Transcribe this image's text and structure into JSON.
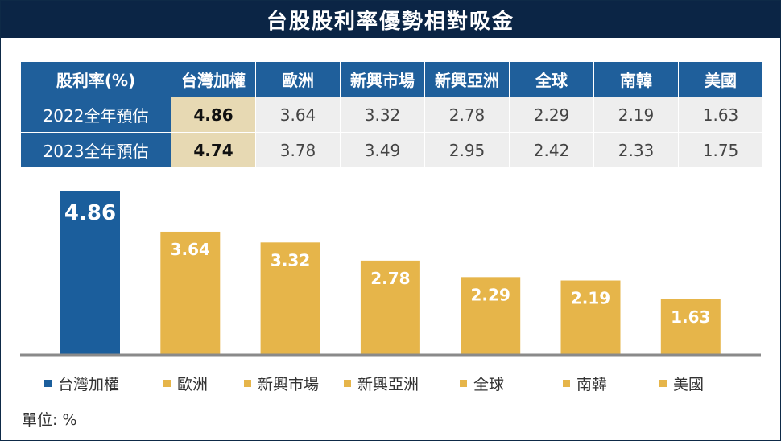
{
  "title": "台股股利率優勢相對吸金",
  "table": {
    "header": [
      "股利率(%)",
      "台灣加權",
      "歐洲",
      "新興市場",
      "新興亞洲",
      "全球",
      "南韓",
      "美國"
    ],
    "rows": [
      {
        "label": "2022全年預估",
        "values": [
          "4.86",
          "3.64",
          "3.32",
          "2.78",
          "2.29",
          "2.19",
          "1.63"
        ]
      },
      {
        "label": "2023全年預估",
        "values": [
          "4.74",
          "3.78",
          "3.49",
          "2.95",
          "2.42",
          "2.33",
          "1.75"
        ]
      }
    ]
  },
  "chart_data": {
    "type": "bar",
    "categories": [
      "台灣加權",
      "歐洲",
      "新興市場",
      "新興亞洲",
      "全球",
      "南韓",
      "美國"
    ],
    "values": [
      4.86,
      3.64,
      3.32,
      2.78,
      2.29,
      2.19,
      1.63
    ],
    "data_labels": [
      "4.86",
      "3.64",
      "3.32",
      "2.78",
      "2.29",
      "2.19",
      "1.63"
    ],
    "colors": [
      "#1b5e9c",
      "#e6b54a",
      "#e6b54a",
      "#e6b54a",
      "#e6b54a",
      "#e6b54a",
      "#e6b54a"
    ],
    "ylim": [
      0,
      4.86
    ],
    "grid": false,
    "legend_position": "bottom"
  },
  "legend": [
    "台灣加權",
    "歐洲",
    "新興市場",
    "新興亞洲",
    "全球",
    "南韓",
    "美國"
  ],
  "unit": "單位: %"
}
